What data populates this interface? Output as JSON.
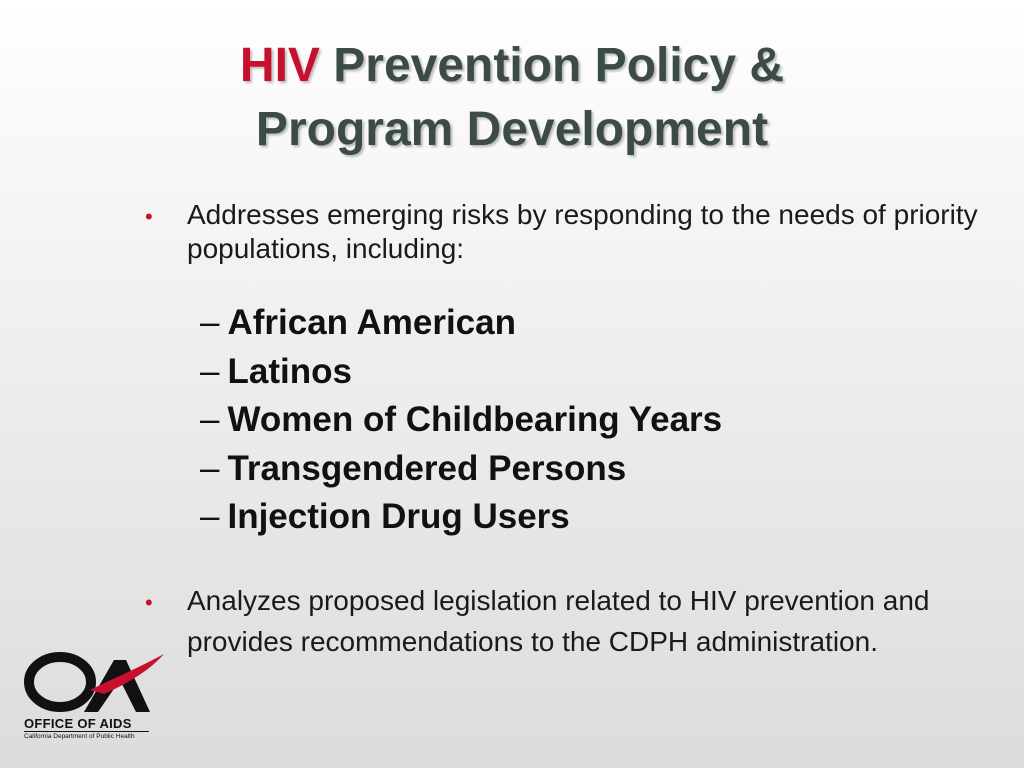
{
  "title": {
    "accent": "HIV",
    "line1_rest": " Prevention Policy &",
    "line2": "Program Development"
  },
  "bullets": [
    {
      "marker": "•",
      "text": "Addresses emerging risks by responding to the needs of priority populations, including:"
    },
    {
      "marker": "•",
      "text": "Analyzes proposed legislation related to HIV prevention and provides recommendations to the CDPH administration."
    }
  ],
  "sublist": {
    "marker": "–",
    "items": [
      "African American",
      "Latinos",
      "Women of Childbearing Years",
      "Transgendered Persons",
      "Injection Drug Users"
    ]
  },
  "logo": {
    "name": "OFFICE OF AIDS",
    "subtitle": "California Department of Public Health",
    "colors": {
      "mark": "#111111",
      "swoosh": "#c8102e"
    }
  },
  "colors": {
    "title": "#3c4b48",
    "accent": "#c8102e",
    "bullet_marker": "#c8102e"
  }
}
